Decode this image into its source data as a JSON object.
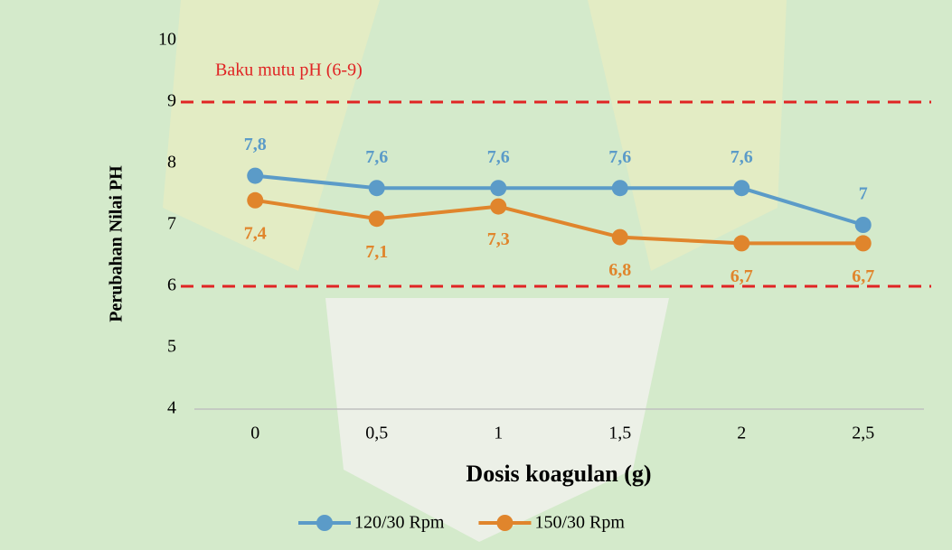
{
  "chart_data": {
    "type": "line",
    "categories": [
      "0",
      "0,5",
      "1",
      "1,5",
      "2",
      "2,5"
    ],
    "series": [
      {
        "name": "120/30 Rpm",
        "color": "#5b9bc8",
        "values": [
          7.8,
          7.6,
          7.6,
          7.6,
          7.6,
          7
        ],
        "value_labels": [
          "7,8",
          "7,6",
          "7,6",
          "7,6",
          "7,6",
          "7"
        ]
      },
      {
        "name": "150/30 Rpm",
        "color": "#e0852c",
        "values": [
          7.4,
          7.1,
          7.3,
          6.8,
          6.7,
          6.7
        ],
        "value_labels": [
          "7,4",
          "7,1",
          "7,3",
          "6,8",
          "6,7",
          "6,7"
        ]
      }
    ],
    "ylim": [
      4,
      10
    ],
    "yticks": [
      4,
      5,
      6,
      7,
      8,
      9,
      10
    ],
    "y_label": "Perubahan Nilai PH",
    "x_label": "Dosis koagulan (g)",
    "reference_lines": [
      {
        "value": 9,
        "color": "#e02424"
      },
      {
        "value": 6,
        "color": "#e02424"
      }
    ],
    "annotation": "Baku mutu pH (6-9)",
    "grid": false,
    "legend": "bottom"
  }
}
